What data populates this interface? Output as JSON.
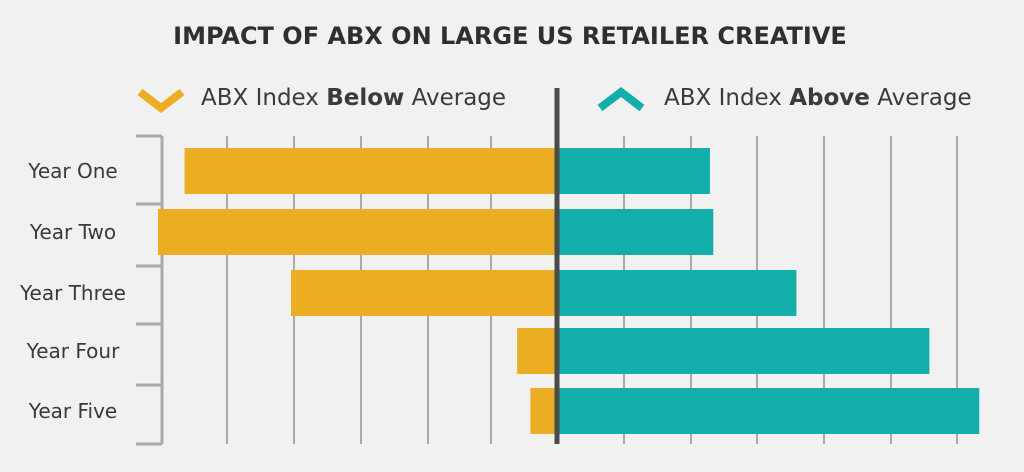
{
  "chart_data": {
    "type": "bar",
    "title": "IMPACT OF ABX ON LARGE US RETAILER CREATIVE",
    "categories": [
      "Year One",
      "Year Two",
      "Year Three",
      "Year Four",
      "Year Five"
    ],
    "series": [
      {
        "name": "ABX Index Below Average",
        "legend_parts": [
          "ABX Index ",
          "Below",
          " Average"
        ],
        "color": "#ebae23",
        "values": [
          -5.6,
          -6.0,
          -4.0,
          -0.6,
          -0.4
        ]
      },
      {
        "name": "ABX Index Above Average",
        "legend_parts": [
          "ABX Index ",
          "Above",
          " Average"
        ],
        "color": "#12aea9",
        "values": [
          2.3,
          2.35,
          3.6,
          5.6,
          6.35
        ]
      }
    ],
    "xlim": [
      -6,
      6.5
    ],
    "grid": true,
    "legend_position": "top",
    "divider_color": "#4a4a4a",
    "grid_color": "#a9a9a9"
  }
}
